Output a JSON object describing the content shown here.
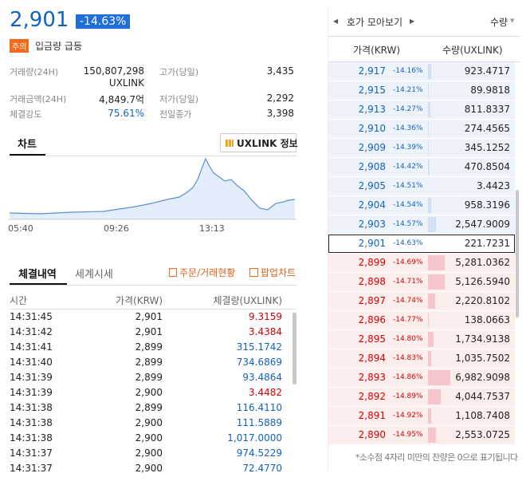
{
  "ticker": {
    "price": "2,901",
    "change": "-14.63%",
    "warning_badge": "주의",
    "warning_text": "입금량 급등"
  },
  "stats": [
    {
      "label": "거래량(24H)",
      "value": "150,807,298",
      "unit": "UXLINK"
    },
    {
      "label": "고가(당일)",
      "value": "3,435"
    },
    {
      "label": "거래금액(24H)",
      "value": "4,849.7억"
    },
    {
      "label": "저가(당일)",
      "value": "2,292"
    },
    {
      "label": "체결강도",
      "value": "75.61%",
      "color": "#1261c4"
    },
    {
      "label": "전일종가",
      "value": "3,398"
    }
  ],
  "chart_section": {
    "tab": "차트",
    "info_button": "UXLINK 정보",
    "x_labels": [
      "05:40",
      "09:26",
      "13:13"
    ]
  },
  "trades": {
    "tabs": [
      "체결내역",
      "세계시세"
    ],
    "links": [
      "주문/거래현황",
      "팝업차트"
    ],
    "columns": [
      "시간",
      "가격(KRW)",
      "체결량(UXLINK)"
    ],
    "rows": [
      {
        "time": "14:31:45",
        "price": "2,901",
        "volume": "9.3159",
        "color": "#d60000"
      },
      {
        "time": "14:31:42",
        "price": "2,901",
        "volume": "3.4384",
        "color": "#d60000"
      },
      {
        "time": "14:31:41",
        "price": "2,899",
        "volume": "315.1742",
        "color": "#1261c4"
      },
      {
        "time": "14:31:40",
        "price": "2,899",
        "volume": "734.6869",
        "color": "#1261c4"
      },
      {
        "time": "14:31:39",
        "price": "2,899",
        "volume": "93.4864",
        "color": "#1261c4"
      },
      {
        "time": "14:31:39",
        "price": "2,900",
        "volume": "3.4482",
        "color": "#d60000"
      },
      {
        "time": "14:31:38",
        "price": "2,899",
        "volume": "116.4110",
        "color": "#1261c4"
      },
      {
        "time": "14:31:38",
        "price": "2,900",
        "volume": "111.5889",
        "color": "#1261c4"
      },
      {
        "time": "14:31:38",
        "price": "2,900",
        "volume": "1,017.0000",
        "color": "#1261c4"
      },
      {
        "time": "14:31:37",
        "price": "2,900",
        "volume": "974.5229",
        "color": "#1261c4"
      },
      {
        "time": "14:31:37",
        "price": "2,900",
        "volume": "72.4770",
        "color": "#1261c4"
      }
    ]
  },
  "orderbook": {
    "title": "호가 모아보기",
    "sort": "수량",
    "columns": [
      "가격(KRW)",
      "수량(UXLINK)"
    ],
    "asks": [
      {
        "price": "2,917",
        "change": "-14.16%",
        "quantity": {
          "value": 923.4717,
          "label": "923.4717"
        }
      },
      {
        "price": "2,915",
        "change": "-14.21%",
        "quantity": {
          "value": 89.9818,
          "label": "89.9818"
        }
      },
      {
        "price": "2,913",
        "change": "-14.27%",
        "quantity": {
          "value": 811.8337,
          "label": "811.8337"
        }
      },
      {
        "price": "2,910",
        "change": "-14.36%",
        "quantity": {
          "value": 274.4565,
          "label": "274.4565"
        }
      },
      {
        "price": "2,909",
        "change": "-14.39%",
        "quantity": {
          "value": 345.1252,
          "label": "345.1252"
        }
      },
      {
        "price": "2,908",
        "change": "-14.42%",
        "quantity": {
          "value": 470.8504,
          "label": "470.8504"
        }
      },
      {
        "price": "2,905",
        "change": "-14.51%",
        "quantity": {
          "value": 3.4423,
          "label": "3.4423"
        }
      },
      {
        "price": "2,904",
        "change": "-14.54%",
        "quantity": {
          "value": 958.3196,
          "label": "958.3196"
        }
      },
      {
        "price": "2,903",
        "change": "-14.57%",
        "quantity": {
          "value": 2547.9009,
          "label": "2,547.9009"
        }
      }
    ],
    "current": {
      "price": "2,901",
      "change": "-14.63%",
      "quantity": {
        "value": 221.7231,
        "label": "221.7231"
      }
    },
    "bids": [
      {
        "price": "2,899",
        "change": "-14.69%",
        "quantity": {
          "value": 5281.0362,
          "label": "5,281.0362"
        }
      },
      {
        "price": "2,898",
        "change": "-14.71%",
        "quantity": {
          "value": 5126.594,
          "label": "5,126.5940"
        }
      },
      {
        "price": "2,897",
        "change": "-14.74%",
        "quantity": {
          "value": 2220.8102,
          "label": "2,220.8102"
        }
      },
      {
        "price": "2,896",
        "change": "-14.77%",
        "quantity": {
          "value": 138.0663,
          "label": "138.0663"
        }
      },
      {
        "price": "2,895",
        "change": "-14.80%",
        "quantity": {
          "value": 1734.9138,
          "label": "1,734.9138"
        }
      },
      {
        "price": "2,894",
        "change": "-14.83%",
        "quantity": {
          "value": 1035.7502,
          "label": "1,035.7502"
        }
      },
      {
        "price": "2,893",
        "change": "-14.86%",
        "quantity": {
          "value": 6982.9098,
          "label": "6,982.9098"
        }
      },
      {
        "price": "2,892",
        "change": "-14.89%",
        "quantity": {
          "value": 4044.7537,
          "label": "4,044.7537"
        }
      },
      {
        "price": "2,891",
        "change": "-14.92%",
        "quantity": {
          "value": 1108.7408,
          "label": "1,108.7408"
        }
      },
      {
        "price": "2,890",
        "change": "-14.95%",
        "quantity": {
          "value": 2553.0725,
          "label": "2,553.0725"
        }
      }
    ],
    "note": "*소수점 4자리 미만의 잔량은 0으로 표기됩니다."
  }
}
